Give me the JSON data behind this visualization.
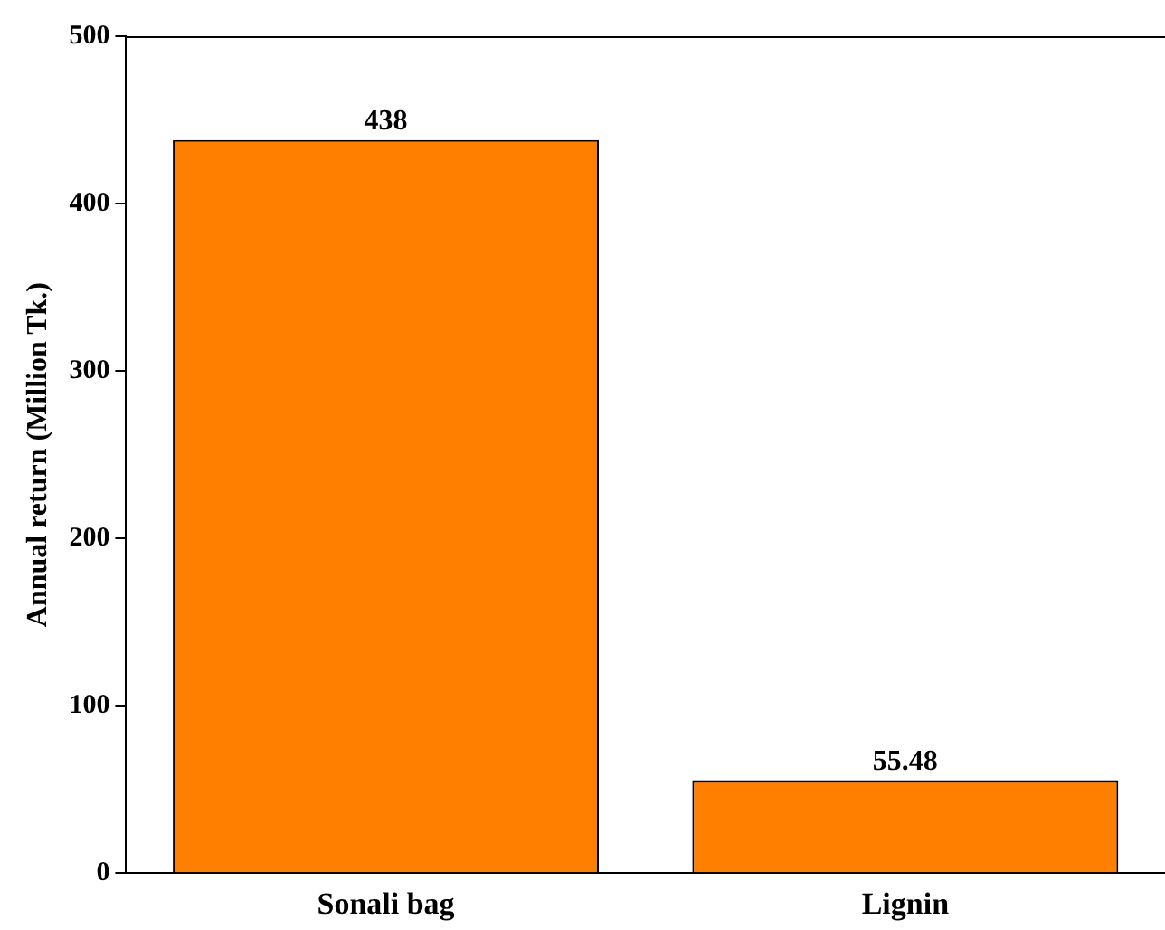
{
  "chart_data": {
    "type": "bar",
    "ylabel": "Annual return (Million Tk.)",
    "categories": [
      "Sonali bag",
      "Lignin"
    ],
    "values": [
      438,
      55.48
    ],
    "color": "#ff8000",
    "ylim": [
      0,
      500
    ],
    "yticks": [
      0,
      100,
      200,
      300,
      400,
      500
    ],
    "data_labels": true,
    "grid": false,
    "legend": false
  }
}
